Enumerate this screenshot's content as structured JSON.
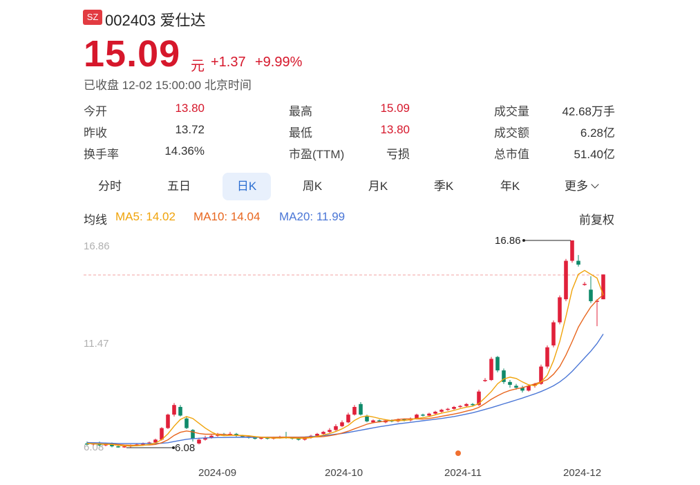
{
  "stock": {
    "exchange": "SZ",
    "code_name": "002403 爱仕达",
    "price": "15.09",
    "unit": "元",
    "change": "+1.37",
    "change_pct": "+9.99%",
    "status": "已收盘 12-02 15:00:00 北京时间"
  },
  "stats": [
    {
      "label": "今开",
      "value": "13.80"
    },
    {
      "label": "昨收",
      "value": "13.72"
    },
    {
      "label": "换手率",
      "value": "14.36%"
    },
    {
      "label": "最高",
      "value": "15.09"
    },
    {
      "label": "最低",
      "value": "13.80"
    },
    {
      "label": "市盈(TTM)",
      "value": "亏损"
    },
    {
      "label": "成交量",
      "value": "42.68万手"
    },
    {
      "label": "成交额",
      "value": "6.28亿"
    },
    {
      "label": "总市值",
      "value": "51.40亿"
    }
  ],
  "tabs": [
    "分时",
    "五日",
    "日K",
    "周K",
    "月K",
    "季K",
    "年K",
    "更多"
  ],
  "active_tab": "日K",
  "ma_legend": {
    "title": "均线",
    "ma5": "MA5: 14.02",
    "ma10": "MA10: 14.04",
    "ma20": "MA20: 11.99",
    "adjust": "前复权"
  },
  "colors": {
    "up": "#e0203a",
    "down": "#0f8a6a",
    "ma5": "#f0a30a",
    "ma10": "#e8661e",
    "ma20": "#4a76d6",
    "accent": "#2b6ed1"
  },
  "chart_data": {
    "type": "candlestick",
    "y_ticks": [
      "16.86",
      "11.47",
      "6.08"
    ],
    "x_ticks": [
      "2024-09",
      "2024-10",
      "2024-11",
      "2024-12"
    ],
    "max_label": "16.86",
    "min_label": "6.08",
    "ylim": [
      6.08,
      16.86
    ],
    "candles": [
      [
        6.3,
        6.25,
        6.4,
        6.2
      ],
      [
        6.25,
        6.3,
        6.35,
        6.2
      ],
      [
        6.3,
        6.2,
        6.4,
        6.15
      ],
      [
        6.2,
        6.3,
        6.35,
        6.15
      ],
      [
        6.3,
        6.15,
        6.35,
        6.1
      ],
      [
        6.15,
        6.1,
        6.2,
        6.08
      ],
      [
        6.1,
        6.15,
        6.2,
        6.08
      ],
      [
        6.15,
        6.2,
        6.25,
        6.1
      ],
      [
        6.2,
        6.25,
        6.3,
        6.15
      ],
      [
        6.25,
        6.3,
        6.35,
        6.2
      ],
      [
        6.3,
        6.35,
        6.4,
        6.25
      ],
      [
        6.35,
        6.5,
        6.55,
        6.3
      ],
      [
        6.5,
        7.1,
        7.15,
        6.45
      ],
      [
        7.1,
        7.8,
        7.85,
        7.05
      ],
      [
        7.8,
        8.3,
        8.4,
        7.7
      ],
      [
        8.2,
        7.75,
        8.3,
        7.7
      ],
      [
        7.6,
        7.1,
        7.7,
        7.05
      ],
      [
        7.0,
        6.55,
        7.05,
        6.4
      ],
      [
        6.3,
        6.5,
        6.6,
        6.25
      ],
      [
        6.5,
        6.6,
        6.7,
        6.45
      ],
      [
        6.6,
        6.7,
        6.75,
        6.55
      ],
      [
        6.7,
        6.75,
        6.85,
        6.65
      ],
      [
        6.8,
        6.75,
        6.85,
        6.7
      ],
      [
        6.75,
        6.8,
        6.9,
        6.7
      ],
      [
        6.8,
        6.7,
        6.85,
        6.65
      ],
      [
        6.7,
        6.65,
        6.75,
        6.6
      ],
      [
        6.65,
        6.6,
        6.7,
        6.55
      ],
      [
        6.6,
        6.55,
        6.65,
        6.5
      ],
      [
        6.55,
        6.6,
        6.65,
        6.5
      ],
      [
        6.6,
        6.55,
        6.65,
        6.5
      ],
      [
        6.55,
        6.6,
        6.65,
        6.5
      ],
      [
        6.6,
        6.65,
        6.7,
        6.55
      ],
      [
        6.65,
        6.6,
        6.9,
        6.55
      ],
      [
        6.6,
        6.55,
        6.65,
        6.5
      ],
      [
        6.55,
        6.5,
        6.6,
        6.45
      ],
      [
        6.5,
        6.6,
        6.65,
        6.45
      ],
      [
        6.6,
        6.7,
        6.75,
        6.55
      ],
      [
        6.7,
        6.8,
        6.85,
        6.65
      ],
      [
        6.8,
        6.9,
        6.95,
        6.75
      ],
      [
        6.9,
        7.0,
        7.1,
        6.85
      ],
      [
        7.0,
        7.2,
        7.3,
        6.95
      ],
      [
        7.2,
        7.4,
        7.5,
        7.15
      ],
      [
        7.4,
        7.8,
        7.9,
        7.35
      ],
      [
        7.8,
        8.2,
        8.3,
        7.75
      ],
      [
        8.35,
        7.8,
        8.45,
        7.75
      ],
      [
        7.7,
        7.45,
        7.8,
        7.4
      ],
      [
        7.4,
        7.5,
        7.55,
        7.35
      ],
      [
        7.5,
        7.45,
        7.55,
        7.4
      ],
      [
        7.4,
        7.5,
        7.55,
        7.35
      ],
      [
        7.5,
        7.45,
        7.55,
        7.4
      ],
      [
        7.45,
        7.55,
        7.6,
        7.4
      ],
      [
        7.55,
        7.5,
        7.6,
        7.45
      ],
      [
        7.5,
        7.6,
        7.65,
        7.45
      ],
      [
        7.6,
        7.8,
        7.85,
        7.55
      ],
      [
        7.8,
        7.75,
        7.85,
        7.7
      ],
      [
        7.75,
        7.85,
        7.9,
        7.7
      ],
      [
        7.85,
        7.95,
        8.0,
        7.8
      ],
      [
        7.95,
        8.05,
        8.1,
        7.9
      ],
      [
        8.05,
        8.1,
        8.15,
        8.0
      ],
      [
        8.1,
        8.2,
        8.25,
        8.05
      ],
      [
        8.2,
        8.25,
        8.3,
        8.15
      ],
      [
        8.25,
        8.35,
        8.4,
        8.2
      ],
      [
        8.35,
        8.3,
        8.4,
        8.25
      ],
      [
        8.3,
        9.0,
        9.1,
        8.25
      ],
      [
        9.6,
        9.6,
        9.7,
        9.5
      ],
      [
        9.6,
        10.7,
        10.8,
        9.55
      ],
      [
        10.8,
        10.1,
        10.85,
        10.0
      ],
      [
        10.1,
        9.5,
        10.2,
        9.4
      ],
      [
        9.5,
        9.35,
        9.6,
        9.2
      ],
      [
        9.3,
        9.2,
        9.4,
        9.1
      ],
      [
        9.2,
        9.05,
        9.3,
        8.95
      ],
      [
        9.05,
        9.3,
        9.35,
        9.0
      ],
      [
        9.3,
        9.4,
        9.45,
        9.2
      ],
      [
        9.4,
        10.3,
        10.4,
        9.35
      ],
      [
        10.3,
        11.3,
        11.4,
        10.2
      ],
      [
        11.4,
        12.6,
        12.7,
        11.3
      ],
      [
        12.6,
        13.9,
        14.0,
        12.5
      ],
      [
        13.8,
        15.8,
        15.9,
        13.7
      ],
      [
        15.8,
        16.86,
        16.86,
        15.7
      ],
      [
        15.8,
        15.6,
        16.1,
        15.5
      ],
      [
        14.6,
        14.6,
        14.7,
        14.5
      ],
      [
        14.3,
        13.7,
        15.0,
        13.6
      ],
      [
        13.7,
        13.72,
        13.8,
        12.4
      ],
      [
        13.8,
        15.09,
        15.09,
        13.8
      ]
    ],
    "ma5": [
      6.3,
      6.28,
      6.27,
      6.26,
      6.25,
      6.2,
      6.18,
      6.17,
      6.18,
      6.2,
      6.25,
      6.32,
      6.5,
      6.8,
      7.2,
      7.55,
      7.7,
      7.6,
      7.35,
      7.1,
      6.9,
      6.75,
      6.7,
      6.72,
      6.73,
      6.72,
      6.7,
      6.66,
      6.62,
      6.6,
      6.58,
      6.58,
      6.6,
      6.58,
      6.57,
      6.57,
      6.6,
      6.67,
      6.74,
      6.82,
      6.92,
      7.06,
      7.24,
      7.5,
      7.67,
      7.74,
      7.68,
      7.6,
      7.54,
      7.49,
      7.49,
      7.5,
      7.53,
      7.6,
      7.64,
      7.7,
      7.79,
      7.88,
      7.94,
      8.02,
      8.11,
      8.19,
      8.24,
      8.38,
      8.68,
      9.0,
      9.4,
      9.65,
      9.75,
      9.68,
      9.5,
      9.35,
      9.3,
      9.5,
      9.85,
      10.6,
      11.6,
      12.9,
      14.3,
      15.1,
      15.3,
      15.1,
      14.9,
      14.02
    ],
    "ma10": [
      6.3,
      6.29,
      6.28,
      6.27,
      6.26,
      6.24,
      6.22,
      6.21,
      6.21,
      6.22,
      6.22,
      6.25,
      6.34,
      6.49,
      6.72,
      6.88,
      6.95,
      6.9,
      6.82,
      6.78,
      6.78,
      6.78,
      6.77,
      6.75,
      6.72,
      6.7,
      6.68,
      6.65,
      6.63,
      6.62,
      6.62,
      6.62,
      6.63,
      6.62,
      6.62,
      6.62,
      6.63,
      6.64,
      6.66,
      6.7,
      6.76,
      6.84,
      6.94,
      7.06,
      7.18,
      7.3,
      7.38,
      7.42,
      7.46,
      7.5,
      7.55,
      7.58,
      7.58,
      7.58,
      7.57,
      7.6,
      7.65,
      7.71,
      7.77,
      7.83,
      7.9,
      7.98,
      8.06,
      8.18,
      8.38,
      8.6,
      8.78,
      8.94,
      9.06,
      9.14,
      9.2,
      9.3,
      9.4,
      9.5,
      9.62,
      9.9,
      10.3,
      10.9,
      11.6,
      12.35,
      12.9,
      13.4,
      13.75,
      14.04
    ],
    "ma20": [
      6.35,
      6.34,
      6.33,
      6.32,
      6.31,
      6.3,
      6.3,
      6.3,
      6.3,
      6.3,
      6.3,
      6.3,
      6.31,
      6.34,
      6.4,
      6.46,
      6.52,
      6.55,
      6.57,
      6.59,
      6.6,
      6.61,
      6.61,
      6.62,
      6.62,
      6.62,
      6.62,
      6.62,
      6.62,
      6.62,
      6.62,
      6.63,
      6.63,
      6.63,
      6.63,
      6.64,
      6.66,
      6.68,
      6.71,
      6.74,
      6.78,
      6.82,
      6.87,
      6.93,
      6.99,
      7.05,
      7.11,
      7.17,
      7.22,
      7.27,
      7.32,
      7.36,
      7.4,
      7.44,
      7.48,
      7.52,
      7.56,
      7.6,
      7.65,
      7.7,
      7.76,
      7.83,
      7.9,
      7.98,
      8.07,
      8.16,
      8.26,
      8.36,
      8.46,
      8.56,
      8.66,
      8.77,
      8.88,
      9.0,
      9.14,
      9.3,
      9.5,
      9.75,
      10.05,
      10.4,
      10.75,
      11.1,
      11.5,
      11.99
    ]
  }
}
